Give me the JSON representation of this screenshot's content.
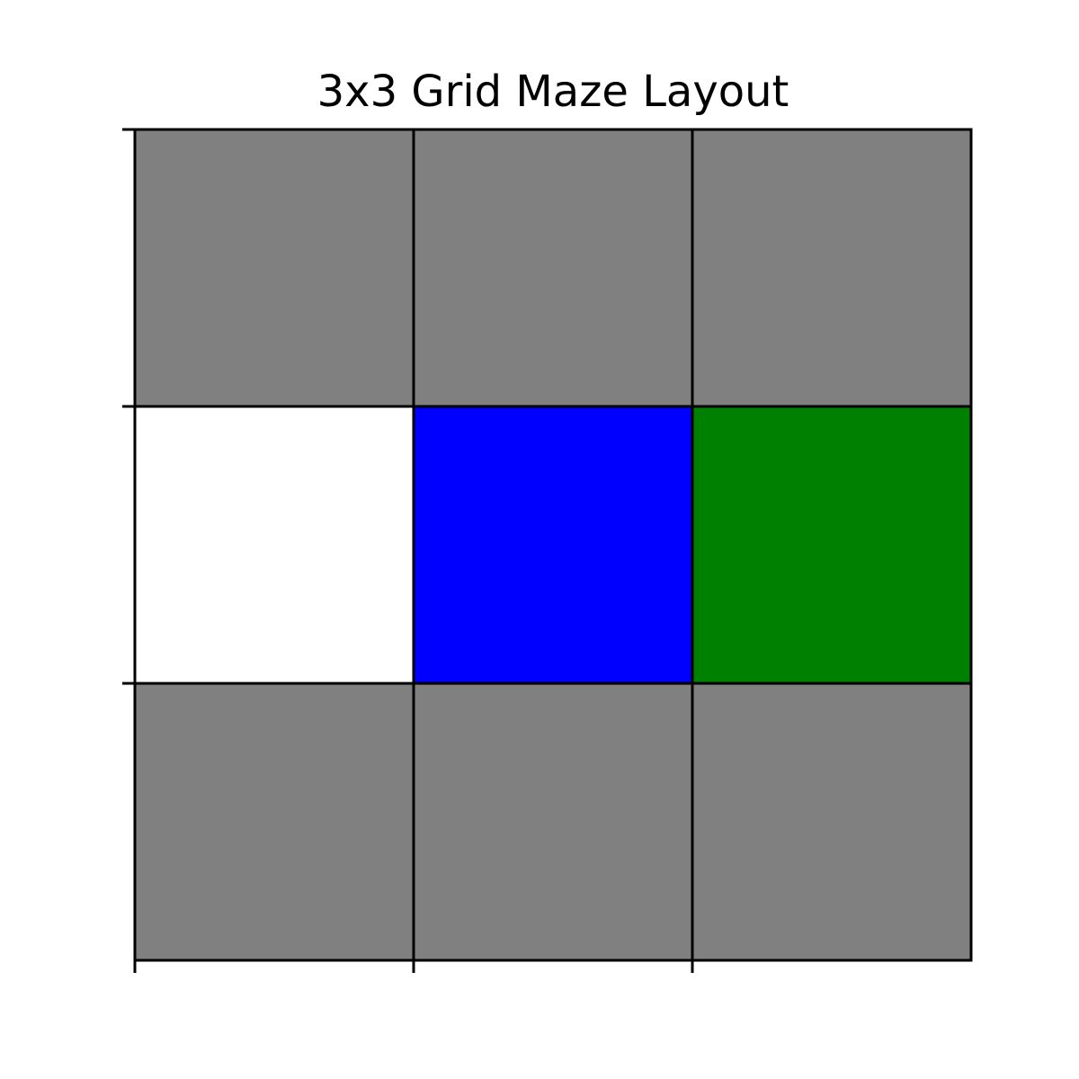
{
  "title": "3x3 Grid Maze Layout",
  "maze": {
    "rows": 3,
    "cols": 3,
    "cells": [
      [
        "gray",
        "gray",
        "gray"
      ],
      [
        "white",
        "blue",
        "green"
      ],
      [
        "gray",
        "gray",
        "gray"
      ]
    ]
  },
  "colors": {
    "gray": "#808080",
    "white": "#ffffff",
    "blue": "#0000ff",
    "green": "#008000",
    "border": "#000000"
  }
}
